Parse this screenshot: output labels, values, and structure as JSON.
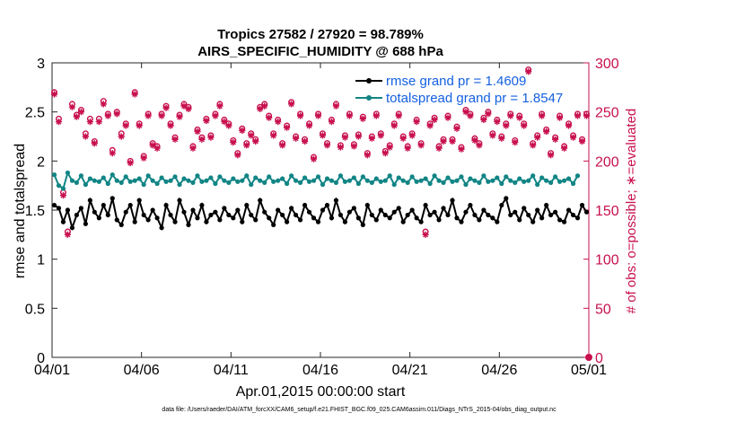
{
  "chart_data": {
    "type": "line",
    "title": "Tropics 27582 / 27920 = 98.789%",
    "subtitle": "AIRS_SPECIFIC_HUMIDITY @ 688 hPa",
    "xlabel": "Apr.01,2015 00:00:00 start",
    "ylabel_left": "rmse and totalspread",
    "ylabel_right": "# of obs: o=possible; ∗=evaluated",
    "xlim": [
      0,
      30
    ],
    "ylim_left": [
      0,
      3
    ],
    "ylim_right": [
      0,
      300
    ],
    "x_ticks": [
      {
        "v": 0,
        "label": "04/01"
      },
      {
        "v": 5,
        "label": "04/06"
      },
      {
        "v": 10,
        "label": "04/11"
      },
      {
        "v": 15,
        "label": "04/16"
      },
      {
        "v": 20,
        "label": "04/21"
      },
      {
        "v": 25,
        "label": "04/26"
      },
      {
        "v": 30,
        "label": "05/01"
      }
    ],
    "y_ticks_left": [
      "0",
      "0.5",
      "1",
      "1.5",
      "2",
      "2.5",
      "3"
    ],
    "y_ticks_right": [
      "0",
      "50",
      "100",
      "150",
      "200",
      "250",
      "300"
    ],
    "legend": [
      {
        "name": "rmse grand pr = 1.4609",
        "color": "#000000"
      },
      {
        "name": "totalspread grand pr = 1.8547",
        "color": "#128585"
      }
    ],
    "legend_position": "top-right",
    "dt_days": 0.25,
    "series": [
      {
        "name": "rmse",
        "axis": "left",
        "color": "#000000",
        "values": [
          1.55,
          1.52,
          1.38,
          1.5,
          1.32,
          1.45,
          1.52,
          1.36,
          1.6,
          1.48,
          1.42,
          1.55,
          1.45,
          1.62,
          1.4,
          1.35,
          1.48,
          1.55,
          1.38,
          1.6,
          1.45,
          1.4,
          1.5,
          1.42,
          1.32,
          1.55,
          1.45,
          1.38,
          1.6,
          1.48,
          1.35,
          1.5,
          1.42,
          1.55,
          1.38,
          1.45,
          1.48,
          1.4,
          1.52,
          1.45,
          1.42,
          1.5,
          1.38,
          1.55,
          1.45,
          1.4,
          1.6,
          1.48,
          1.42,
          1.35,
          1.5,
          1.45,
          1.38,
          1.52,
          1.45,
          1.4,
          1.55,
          1.48,
          1.42,
          1.38,
          1.5,
          1.55,
          1.42,
          1.6,
          1.45,
          1.38,
          1.48,
          1.52,
          1.42,
          1.35,
          1.55,
          1.45,
          1.4,
          1.5,
          1.45,
          1.42,
          1.48,
          1.52,
          1.38,
          1.45,
          1.5,
          1.42,
          1.38,
          1.55,
          1.45,
          1.48,
          1.4,
          1.52,
          1.45,
          1.6,
          1.42,
          1.38,
          1.48,
          1.55,
          1.45,
          1.4,
          1.5,
          1.45,
          1.42,
          1.38,
          1.55,
          1.62,
          1.45,
          1.48,
          1.4,
          1.52,
          1.45,
          1.38,
          1.5,
          1.42,
          1.55,
          1.45,
          1.48,
          1.4,
          1.38,
          1.5,
          1.45,
          1.42,
          1.55,
          1.48
        ]
      },
      {
        "name": "totalspread",
        "axis": "left",
        "color": "#128585",
        "values": [
          1.86,
          1.75,
          1.72,
          1.88,
          1.8,
          1.78,
          1.85,
          1.76,
          1.82,
          1.8,
          1.79,
          1.83,
          1.77,
          1.86,
          1.8,
          1.78,
          1.84,
          1.79,
          1.8,
          1.82,
          1.76,
          1.85,
          1.8,
          1.77,
          1.83,
          1.79,
          1.8,
          1.84,
          1.76,
          1.82,
          1.8,
          1.78,
          1.85,
          1.79,
          1.8,
          1.83,
          1.77,
          1.84,
          1.8,
          1.78,
          1.82,
          1.79,
          1.8,
          1.85,
          1.76,
          1.83,
          1.8,
          1.78,
          1.84,
          1.79,
          1.8,
          1.82,
          1.77,
          1.85,
          1.8,
          1.78,
          1.83,
          1.79,
          1.8,
          1.84,
          1.76,
          1.82,
          1.8,
          1.78,
          1.85,
          1.79,
          1.8,
          1.83,
          1.77,
          1.84,
          1.8,
          1.78,
          1.82,
          1.79,
          1.8,
          1.85,
          1.76,
          1.83,
          1.8,
          1.78,
          1.84,
          1.79,
          1.8,
          1.82,
          1.77,
          1.85,
          1.8,
          1.78,
          1.83,
          1.79,
          1.8,
          1.84,
          1.76,
          1.82,
          1.8,
          1.78,
          1.85,
          1.79,
          1.8,
          1.83,
          1.77,
          1.84,
          1.8,
          1.78,
          1.82,
          1.79,
          1.8,
          1.85,
          1.76,
          1.83,
          1.8,
          1.78,
          1.84,
          1.79,
          1.8,
          1.82,
          1.77,
          1.85
        ]
      },
      {
        "name": "obs possible",
        "axis": "right",
        "color": "#c8104e",
        "marker": "circle",
        "values": [
          270,
          243,
          168,
          128,
          258,
          247,
          252,
          228,
          243,
          220,
          243,
          261,
          248,
          211,
          250,
          228,
          238,
          200,
          270,
          238,
          205,
          248,
          218,
          215,
          248,
          256,
          238,
          224,
          247,
          258,
          255,
          215,
          232,
          224,
          243,
          226,
          248,
          258,
          242,
          238,
          221,
          208,
          233,
          218,
          228,
          222,
          255,
          258,
          246,
          228,
          242,
          218,
          236,
          260,
          225,
          248,
          222,
          238,
          204,
          248,
          228,
          218,
          242,
          258,
          216,
          226,
          248,
          217,
          227,
          245,
          208,
          225,
          248,
          228,
          210,
          216,
          238,
          248,
          225,
          215,
          228,
          242,
          218,
          128,
          238,
          244,
          215,
          222,
          246,
          222,
          235,
          214,
          252,
          248,
          223,
          218,
          244,
          250,
          228,
          242,
          225,
          238,
          248,
          221,
          246,
          238,
          293,
          218,
          226,
          248,
          232,
          208,
          224,
          246,
          215,
          238,
          226,
          248,
          222,
          248
        ]
      },
      {
        "name": "obs evaluated",
        "axis": "right",
        "color": "#c8104e",
        "marker": "asterisk",
        "values": [
          268,
          240,
          165,
          125,
          255,
          245,
          250,
          225,
          240,
          218,
          240,
          258,
          246,
          208,
          248,
          225,
          236,
          198,
          268,
          236,
          203,
          246,
          216,
          213,
          246,
          254,
          236,
          222,
          245,
          256,
          253,
          213,
          230,
          222,
          241,
          224,
          246,
          256,
          240,
          236,
          219,
          206,
          231,
          216,
          226,
          220,
          253,
          256,
          244,
          226,
          240,
          216,
          234,
          258,
          223,
          246,
          220,
          236,
          202,
          246,
          226,
          216,
          240,
          256,
          214,
          224,
          246,
          215,
          225,
          243,
          206,
          223,
          246,
          226,
          208,
          214,
          236,
          246,
          223,
          213,
          226,
          240,
          216,
          125,
          236,
          242,
          213,
          220,
          244,
          220,
          233,
          212,
          250,
          246,
          221,
          216,
          242,
          248,
          226,
          240,
          223,
          236,
          246,
          219,
          244,
          236,
          291,
          216,
          224,
          246,
          230,
          206,
          222,
          244,
          213,
          236,
          224,
          246,
          220,
          246
        ]
      }
    ]
  },
  "footer": "data file: /Users/raeder/DAI/ATM_forcXX/CAM6_setup/f.e21.FHIST_BGC.f09_025.CAM6assim.011/Diags_NTrS_2015-04/obs_diag_output.nc"
}
